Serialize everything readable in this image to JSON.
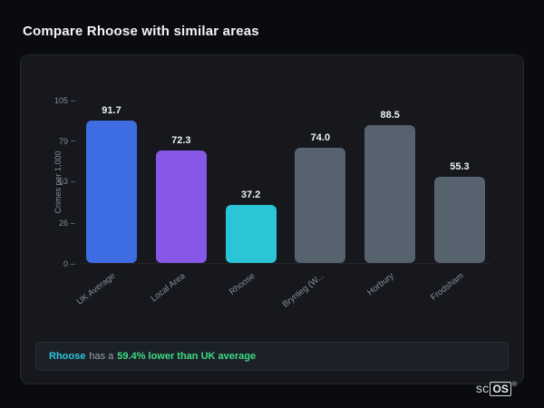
{
  "page": {
    "title": "Compare Rhoose with similar areas"
  },
  "chart_data": {
    "type": "bar",
    "categories": [
      "UK Average",
      "Local Area",
      "Rhoose",
      "Brynteg (W...",
      "Horbury",
      "Frodsham"
    ],
    "values": [
      91.7,
      72.3,
      37.2,
      74.0,
      88.5,
      55.3
    ],
    "bar_colors": [
      "#3e6ce2",
      "#8757e8",
      "#2cc5d8",
      "#57626f",
      "#57626f",
      "#57626f"
    ],
    "title": "Compare Rhoose with similar areas",
    "xlabel": "",
    "ylabel": "Crimes per 1,000",
    "yticks": [
      0,
      26,
      53,
      79,
      105
    ],
    "ylim": [
      0,
      105
    ],
    "grid": false,
    "legend": false
  },
  "note": {
    "area": "Rhoose",
    "middle": "has a",
    "highlight": "59.4% lower than UK average",
    "area_color": "#2cc5d8",
    "middle_color": "#9aa1a9",
    "highlight_color": "#3ddc84"
  },
  "logo": {
    "prefix": "sc",
    "suffix": "OS",
    "registered": "®"
  }
}
